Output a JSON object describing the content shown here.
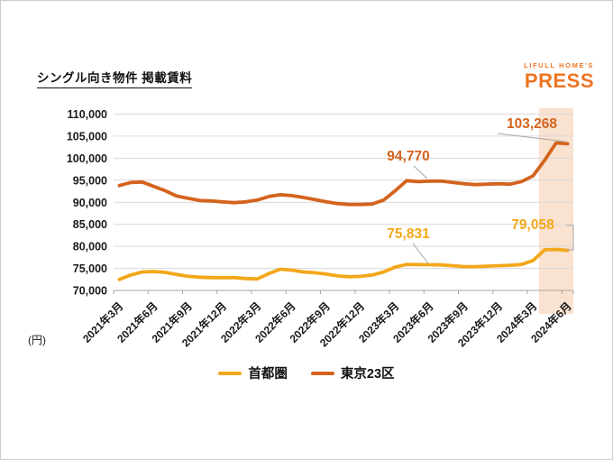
{
  "page": {
    "title": "シングル向き物件 掲載賃料",
    "unit_label": "(円)"
  },
  "logo": {
    "top": "LIFULL HOME'S",
    "bottom": "PRESS",
    "color": "#ED7524"
  },
  "chart_data": {
    "type": "line",
    "title": "シングル向き物件 掲載賃料",
    "unit": "円",
    "x_start": "2021年3月",
    "x_end": "2024年6月",
    "x_interval": "monthly",
    "n_points": 40,
    "grid": true,
    "legend_position": "bottom",
    "ylim": [
      70000,
      110000
    ],
    "ytick_labels": [
      "110,000",
      "105,000",
      "100,000",
      "95,000",
      "90,000",
      "85,000",
      "80,000",
      "75,000",
      "70,000"
    ],
    "xtick_labels": [
      "2021年3月",
      "2021年6月",
      "2021年9月",
      "2021年12月",
      "2022年3月",
      "2022年6月",
      "2022年9月",
      "2022年12月",
      "2023年3月",
      "2023年6月",
      "2023年9月",
      "2023年12月",
      "2024年3月",
      "2024年6月"
    ],
    "series": [
      {
        "name": "首都圏",
        "key": "shutoken",
        "color": "#F3A71A",
        "values": [
          72500,
          73500,
          74200,
          74300,
          74100,
          73600,
          73200,
          73000,
          72900,
          72900,
          72900,
          72700,
          72600,
          73800,
          74800,
          74600,
          74200,
          74000,
          73700,
          73300,
          73100,
          73200,
          73500,
          74200,
          75300,
          75900,
          75850,
          75831,
          75800,
          75600,
          75400,
          75400,
          75500,
          75600,
          75700,
          75900,
          76800,
          79200,
          79300,
          79058
        ]
      },
      {
        "name": "東京23区",
        "key": "tokyo23",
        "color": "#D4631D",
        "values": [
          93800,
          94500,
          94600,
          93600,
          92600,
          91400,
          90900,
          90400,
          90300,
          90100,
          89900,
          90100,
          90500,
          91300,
          91700,
          91500,
          91100,
          90600,
          90100,
          89700,
          89500,
          89500,
          89600,
          90500,
          92600,
          94900,
          94700,
          94770,
          94800,
          94500,
          94200,
          94000,
          94100,
          94200,
          94100,
          94700,
          96000,
          99500,
          103450,
          103268
        ]
      }
    ],
    "annotations": [
      {
        "series": "東京23区",
        "x_index": 27,
        "x_label": "2023年6月",
        "label": "94,770"
      },
      {
        "series": "東京23区",
        "x_index": 39,
        "x_label": "2024年6月",
        "label": "103,268"
      },
      {
        "series": "首都圏",
        "x_index": 27,
        "x_label": "2023年6月",
        "label": "75,831"
      },
      {
        "series": "首都圏",
        "x_index": 39,
        "x_label": "2024年6月",
        "label": "79,058"
      }
    ],
    "highlight_band": {
      "from_index": 37,
      "to_index": 39,
      "color": "#F9E2D0"
    },
    "gridline_color": "#D9D9D9",
    "axis_color": "#A6A6A6",
    "leader_line_color": "#A6A6A6"
  }
}
